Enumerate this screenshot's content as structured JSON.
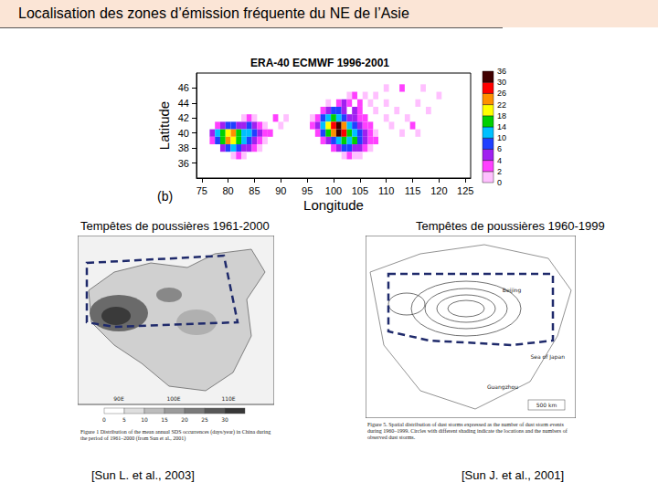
{
  "slide_title": "Localisation des zones d’émission fréquente du NE de l’Asie",
  "chart_data": {
    "type": "heatmap",
    "title": "ERA-40 ECMWF 1996-2001",
    "annotation": "(b)",
    "x_label": "Longitude",
    "y_label": "Latitude",
    "xlim": [
      74,
      126
    ],
    "ylim": [
      34,
      48
    ],
    "xticks": [
      75,
      80,
      85,
      90,
      95,
      100,
      105,
      110,
      115,
      120,
      125
    ],
    "yticks": [
      36,
      38,
      40,
      42,
      44,
      46
    ],
    "cells": [
      [
        83,
        42,
        1
      ],
      [
        84,
        42,
        2
      ],
      [
        85,
        42,
        1
      ],
      [
        78,
        41,
        2
      ],
      [
        79,
        41,
        4
      ],
      [
        80,
        41,
        6
      ],
      [
        81,
        41,
        6
      ],
      [
        82,
        41,
        4
      ],
      [
        83,
        41,
        4
      ],
      [
        84,
        41,
        6
      ],
      [
        85,
        41,
        4
      ],
      [
        86,
        41,
        2
      ],
      [
        87,
        41,
        1
      ],
      [
        77,
        40,
        4
      ],
      [
        78,
        40,
        10
      ],
      [
        79,
        40,
        14
      ],
      [
        80,
        40,
        18
      ],
      [
        81,
        40,
        22
      ],
      [
        82,
        40,
        14
      ],
      [
        83,
        40,
        10
      ],
      [
        84,
        40,
        10
      ],
      [
        85,
        40,
        6
      ],
      [
        86,
        40,
        4
      ],
      [
        87,
        40,
        2
      ],
      [
        88,
        40,
        2
      ],
      [
        77,
        39,
        2
      ],
      [
        78,
        39,
        6
      ],
      [
        79,
        39,
        14
      ],
      [
        80,
        39,
        22
      ],
      [
        81,
        39,
        18
      ],
      [
        82,
        39,
        14
      ],
      [
        83,
        39,
        10
      ],
      [
        84,
        39,
        6
      ],
      [
        85,
        39,
        4
      ],
      [
        86,
        39,
        2
      ],
      [
        87,
        39,
        1
      ],
      [
        79,
        38,
        4
      ],
      [
        80,
        38,
        6
      ],
      [
        81,
        38,
        10
      ],
      [
        82,
        38,
        6
      ],
      [
        83,
        38,
        4
      ],
      [
        84,
        38,
        4
      ],
      [
        85,
        38,
        2
      ],
      [
        86,
        38,
        1
      ],
      [
        81,
        37,
        1
      ],
      [
        82,
        37,
        2
      ],
      [
        83,
        37,
        1
      ],
      [
        89,
        42,
        2
      ],
      [
        90,
        41,
        1
      ],
      [
        91,
        42,
        1
      ],
      [
        103,
        45,
        1
      ],
      [
        104,
        45,
        2
      ],
      [
        106,
        45,
        1
      ],
      [
        108,
        45,
        1
      ],
      [
        99,
        44,
        1
      ],
      [
        101,
        44,
        2
      ],
      [
        102,
        44,
        4
      ],
      [
        103,
        44,
        2
      ],
      [
        105,
        44,
        2
      ],
      [
        107,
        44,
        1
      ],
      [
        110,
        44,
        1
      ],
      [
        98,
        43,
        2
      ],
      [
        99,
        43,
        4
      ],
      [
        100,
        43,
        6
      ],
      [
        101,
        43,
        6
      ],
      [
        102,
        43,
        4
      ],
      [
        104,
        43,
        4
      ],
      [
        105,
        43,
        2
      ],
      [
        108,
        43,
        1
      ],
      [
        112,
        43,
        1
      ],
      [
        96,
        42,
        1
      ],
      [
        97,
        42,
        2
      ],
      [
        98,
        42,
        6
      ],
      [
        99,
        42,
        10
      ],
      [
        100,
        42,
        14
      ],
      [
        101,
        42,
        10
      ],
      [
        102,
        42,
        6
      ],
      [
        103,
        42,
        4
      ],
      [
        104,
        42,
        4
      ],
      [
        105,
        42,
        2
      ],
      [
        106,
        42,
        2
      ],
      [
        110,
        42,
        1
      ],
      [
        114,
        42,
        1
      ],
      [
        96,
        41,
        2
      ],
      [
        97,
        41,
        4
      ],
      [
        98,
        41,
        10
      ],
      [
        99,
        41,
        18
      ],
      [
        100,
        41,
        26
      ],
      [
        101,
        41,
        30
      ],
      [
        102,
        41,
        22
      ],
      [
        103,
        41,
        10
      ],
      [
        104,
        41,
        6
      ],
      [
        105,
        41,
        4
      ],
      [
        106,
        41,
        2
      ],
      [
        107,
        41,
        2
      ],
      [
        111,
        41,
        1
      ],
      [
        115,
        41,
        2
      ],
      [
        97,
        40,
        2
      ],
      [
        98,
        40,
        6
      ],
      [
        99,
        40,
        14
      ],
      [
        100,
        40,
        22
      ],
      [
        101,
        40,
        36
      ],
      [
        102,
        40,
        26
      ],
      [
        103,
        40,
        14
      ],
      [
        104,
        40,
        10
      ],
      [
        105,
        40,
        6
      ],
      [
        106,
        40,
        4
      ],
      [
        107,
        40,
        2
      ],
      [
        108,
        40,
        1
      ],
      [
        113,
        40,
        1
      ],
      [
        116,
        40,
        1
      ],
      [
        98,
        39,
        2
      ],
      [
        99,
        39,
        4
      ],
      [
        100,
        39,
        6
      ],
      [
        101,
        39,
        10
      ],
      [
        102,
        39,
        14
      ],
      [
        103,
        39,
        10
      ],
      [
        104,
        39,
        14
      ],
      [
        105,
        39,
        6
      ],
      [
        106,
        39,
        4
      ],
      [
        107,
        39,
        2
      ],
      [
        108,
        39,
        2
      ],
      [
        100,
        38,
        2
      ],
      [
        101,
        38,
        4
      ],
      [
        102,
        38,
        6
      ],
      [
        103,
        38,
        6
      ],
      [
        104,
        38,
        4
      ],
      [
        105,
        38,
        4
      ],
      [
        106,
        38,
        2
      ],
      [
        107,
        38,
        1
      ],
      [
        102,
        37,
        1
      ],
      [
        103,
        37,
        2
      ],
      [
        104,
        37,
        1
      ],
      [
        105,
        37,
        1
      ],
      [
        110,
        46,
        1
      ],
      [
        113,
        46,
        2
      ],
      [
        117,
        46,
        1
      ],
      [
        120,
        45,
        1
      ],
      [
        116,
        44,
        1
      ],
      [
        118,
        43,
        1
      ]
    ],
    "colorbar": {
      "levels": [
        0,
        2,
        4,
        6,
        10,
        14,
        18,
        22,
        26,
        30,
        36
      ],
      "colors": [
        "#ffc0ff",
        "#ff40ff",
        "#a020f0",
        "#2040ff",
        "#00c0ff",
        "#00d000",
        "#ffff00",
        "#ff9000",
        "#ff0000",
        "#400000"
      ]
    }
  },
  "maps": [
    {
      "caption": "Tempêtes de poussières 1961-2000",
      "citation": "[Sun L. et al., 2003]",
      "axis_labels": [
        "90E",
        "100E",
        "110E"
      ],
      "legend_labels": [
        "0",
        "5",
        "10",
        "15",
        "20",
        "25",
        "30"
      ],
      "figure_text": "Figure 1  Distribution of the mean annual SDS occurrences (days/year) in China during the period of 1961–2000 (from Sun et al., 2001)"
    },
    {
      "caption": "Tempêtes de poussières 1960-1999",
      "citation": "[Sun J. et al., 2001]",
      "place_labels": [
        "Beijing",
        "Guangzhou",
        "Sea of Japan"
      ],
      "scale_label": "500 km",
      "figure_text": "Figure 5.  Spatial distribution of dust storms expressed as the number of dust storm events during 1960–1999. Circles with different shading indicate the locations and the numbers of observed dust storms."
    }
  ]
}
